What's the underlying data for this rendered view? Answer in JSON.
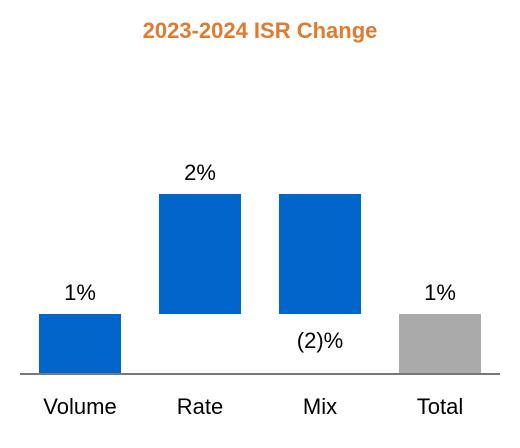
{
  "chart_data": {
    "type": "bar",
    "subtype": "waterfall",
    "title": "2023-2024 ISR Change",
    "xlabel": "",
    "ylabel": "",
    "categories": [
      "Volume",
      "Rate",
      "Mix",
      "Total"
    ],
    "values": [
      1,
      2,
      -2,
      1
    ],
    "data_labels": [
      "1%",
      "2%",
      "(2)%",
      "1%"
    ],
    "kinds": [
      "delta",
      "delta",
      "delta",
      "total"
    ],
    "ylim": [
      0,
      3
    ],
    "grid": false,
    "legend": "none"
  },
  "colors": {
    "title": "#E07B2E",
    "increase": "#0066CC",
    "decrease": "#0066CC",
    "total": "#AAAAAA",
    "axis": "#777777",
    "text": "#000000"
  }
}
